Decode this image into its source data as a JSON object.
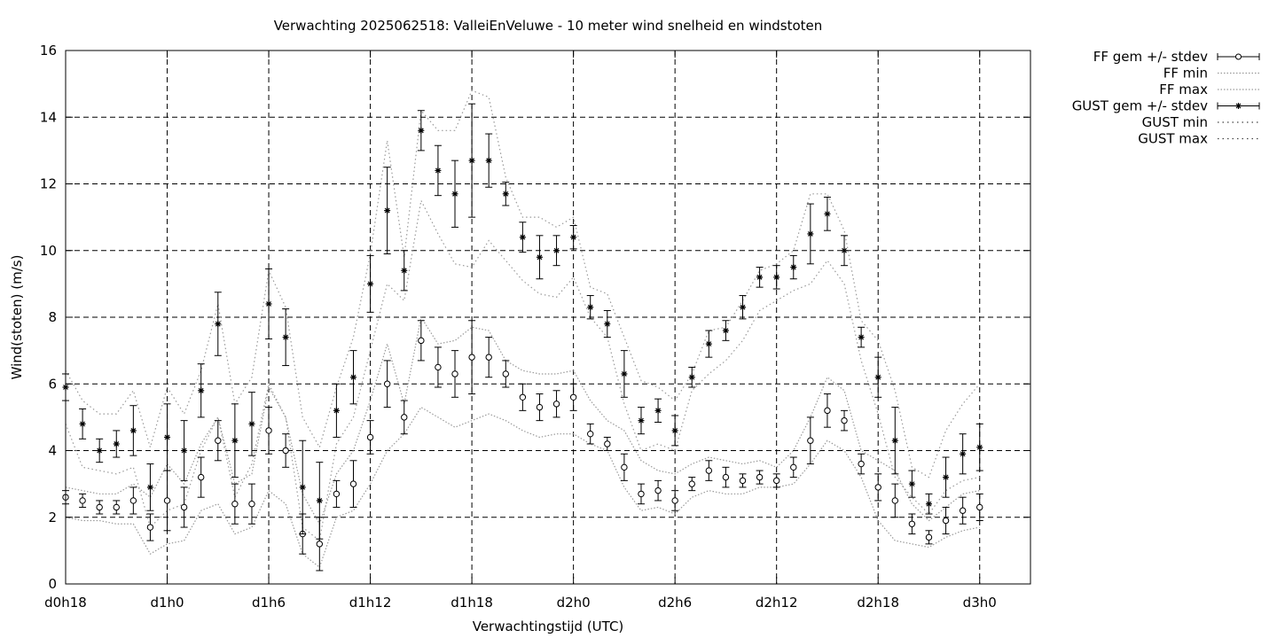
{
  "chart_data": {
    "type": "line",
    "title": "Verwachting 2025062518: ValleiEnVeluwe - 10 meter wind snelheid en windstoten",
    "xlabel": "Verwachtingstijd (UTC)",
    "ylabel": "Wind(stoten) (m/s)",
    "xlim": [
      18,
      75
    ],
    "ylim": [
      0,
      16
    ],
    "yticks": [
      0,
      2,
      4,
      6,
      8,
      10,
      12,
      14,
      16
    ],
    "xticks": [
      {
        "x": 18,
        "label": "d0h18"
      },
      {
        "x": 24,
        "label": "d1h0"
      },
      {
        "x": 30,
        "label": "d1h6"
      },
      {
        "x": 36,
        "label": "d1h12"
      },
      {
        "x": 42,
        "label": "d1h18"
      },
      {
        "x": 48,
        "label": "d2h0"
      },
      {
        "x": 54,
        "label": "d2h6"
      },
      {
        "x": 60,
        "label": "d2h12"
      },
      {
        "x": 66,
        "label": "d2h18"
      },
      {
        "x": 72,
        "label": "d3h0"
      }
    ],
    "grid": true,
    "legend_position": "outside-top-right",
    "x": [
      18,
      19,
      20,
      21,
      22,
      23,
      24,
      25,
      26,
      27,
      28,
      29,
      30,
      31,
      32,
      33,
      34,
      35,
      36,
      37,
      38,
      39,
      40,
      41,
      42,
      43,
      44,
      45,
      46,
      47,
      48,
      49,
      50,
      51,
      52,
      53,
      54,
      55,
      56,
      57,
      58,
      59,
      60,
      61,
      62,
      63,
      64,
      65,
      66,
      67,
      68,
      69,
      70,
      71,
      72
    ],
    "series": [
      {
        "name": "FF gem +/- stdev",
        "style": "errorbar-circle",
        "values": [
          2.6,
          2.5,
          2.3,
          2.3,
          2.5,
          1.7,
          2.5,
          2.3,
          3.2,
          4.3,
          2.4,
          2.4,
          4.6,
          4.0,
          1.5,
          1.2,
          2.7,
          3.0,
          4.4,
          6.0,
          5.0,
          7.3,
          6.5,
          6.3,
          6.8,
          6.8,
          6.3,
          5.6,
          5.3,
          5.4,
          5.6,
          4.5,
          4.2,
          3.5,
          2.7,
          2.8,
          2.5,
          3.0,
          3.4,
          3.2,
          3.1,
          3.2,
          3.1,
          3.5,
          4.3,
          5.2,
          4.9,
          3.6,
          2.9,
          2.5,
          1.8,
          1.4,
          1.9,
          2.2,
          2.3
        ],
        "stdev": [
          0.2,
          0.2,
          0.2,
          0.2,
          0.4,
          0.4,
          0.9,
          0.6,
          0.6,
          0.6,
          0.6,
          0.6,
          0.7,
          0.5,
          0.6,
          0.8,
          0.4,
          0.7,
          0.5,
          0.7,
          0.5,
          0.6,
          0.6,
          0.7,
          1.1,
          0.6,
          0.4,
          0.4,
          0.4,
          0.4,
          0.4,
          0.3,
          0.2,
          0.4,
          0.3,
          0.3,
          0.3,
          0.2,
          0.3,
          0.3,
          0.2,
          0.2,
          0.2,
          0.3,
          0.7,
          0.5,
          0.3,
          0.3,
          0.4,
          0.5,
          0.3,
          0.2,
          0.4,
          0.4,
          0.4
        ]
      },
      {
        "name": "FF min",
        "style": "dotted",
        "values": [
          2.0,
          1.9,
          1.9,
          1.8,
          1.8,
          0.9,
          1.2,
          1.3,
          2.2,
          2.4,
          1.5,
          1.7,
          2.8,
          2.4,
          0.9,
          0.5,
          2.0,
          2.2,
          3.0,
          4.0,
          4.5,
          5.3,
          5.0,
          4.7,
          4.9,
          5.1,
          4.9,
          4.6,
          4.4,
          4.5,
          4.5,
          4.2,
          4.0,
          2.9,
          2.2,
          2.3,
          2.1,
          2.6,
          2.8,
          2.7,
          2.7,
          2.9,
          2.9,
          3.0,
          3.6,
          4.3,
          4.0,
          3.2,
          1.9,
          1.3,
          1.2,
          1.1,
          1.4,
          1.6,
          1.7
        ]
      },
      {
        "name": "FF max",
        "style": "dotted",
        "values": [
          2.9,
          2.8,
          2.7,
          2.7,
          3.0,
          2.6,
          3.6,
          3.0,
          4.2,
          5.0,
          3.0,
          3.3,
          5.9,
          5.0,
          2.7,
          1.8,
          3.3,
          4.0,
          5.5,
          7.2,
          5.4,
          8.0,
          7.2,
          7.3,
          7.7,
          7.6,
          6.7,
          6.4,
          6.3,
          6.3,
          6.4,
          5.5,
          4.9,
          4.6,
          3.7,
          3.4,
          3.3,
          3.6,
          3.8,
          3.7,
          3.6,
          3.7,
          3.5,
          4.0,
          5.0,
          6.2,
          5.8,
          4.0,
          3.7,
          3.4,
          2.4,
          1.9,
          2.3,
          2.7,
          2.8
        ]
      },
      {
        "name": "GUST gem +/- stdev",
        "style": "errorbar-star",
        "values": [
          5.9,
          4.8,
          4.0,
          4.2,
          4.6,
          2.9,
          4.4,
          4.0,
          5.8,
          7.8,
          4.3,
          4.8,
          8.4,
          7.4,
          2.9,
          2.5,
          5.2,
          6.2,
          9.0,
          11.2,
          9.4,
          13.6,
          12.4,
          11.7,
          12.7,
          12.7,
          11.7,
          10.4,
          9.8,
          10.0,
          10.4,
          8.3,
          7.8,
          6.3,
          4.9,
          5.2,
          4.6,
          6.2,
          7.2,
          7.6,
          8.3,
          9.2,
          9.2,
          9.5,
          10.5,
          11.1,
          10.0,
          7.4,
          6.2,
          4.3,
          3.0,
          2.4,
          3.2,
          3.9,
          4.1
        ]
      },
      {
        "name": "GUST min",
        "style": "dotted",
        "values": [
          4.8,
          3.5,
          3.4,
          3.3,
          3.5,
          1.7,
          2.2,
          2.4,
          4.0,
          5.0,
          2.6,
          3.6,
          6.0,
          5.0,
          1.7,
          1.3,
          4.2,
          5.0,
          7.0,
          9.0,
          8.5,
          11.5,
          10.5,
          9.6,
          9.5,
          10.3,
          9.7,
          9.1,
          8.7,
          8.6,
          9.2,
          8.0,
          7.4,
          5.4,
          4.0,
          4.2,
          4.0,
          5.8,
          6.3,
          6.7,
          7.3,
          8.2,
          8.5,
          8.8,
          9.0,
          9.7,
          9.0,
          6.7,
          5.1,
          3.2,
          2.6,
          2.1,
          2.8,
          3.1,
          3.2
        ]
      },
      {
        "name": "GUST max",
        "style": "dotted",
        "values": [
          6.4,
          5.5,
          5.1,
          5.1,
          5.8,
          4.1,
          5.9,
          5.1,
          6.4,
          8.4,
          5.4,
          6.2,
          9.4,
          8.3,
          5.0,
          4.1,
          5.9,
          7.4,
          9.9,
          13.3,
          9.8,
          14.2,
          13.6,
          13.6,
          14.8,
          14.6,
          12.2,
          11.0,
          11.0,
          10.7,
          11.0,
          8.9,
          8.7,
          7.4,
          6.1,
          5.9,
          5.5,
          6.3,
          7.6,
          7.7,
          8.5,
          9.4,
          9.6,
          10.0,
          11.7,
          11.7,
          10.6,
          7.9,
          7.3,
          5.8,
          3.5,
          3.2,
          4.6,
          5.4,
          6.0
        ]
      }
    ]
  }
}
